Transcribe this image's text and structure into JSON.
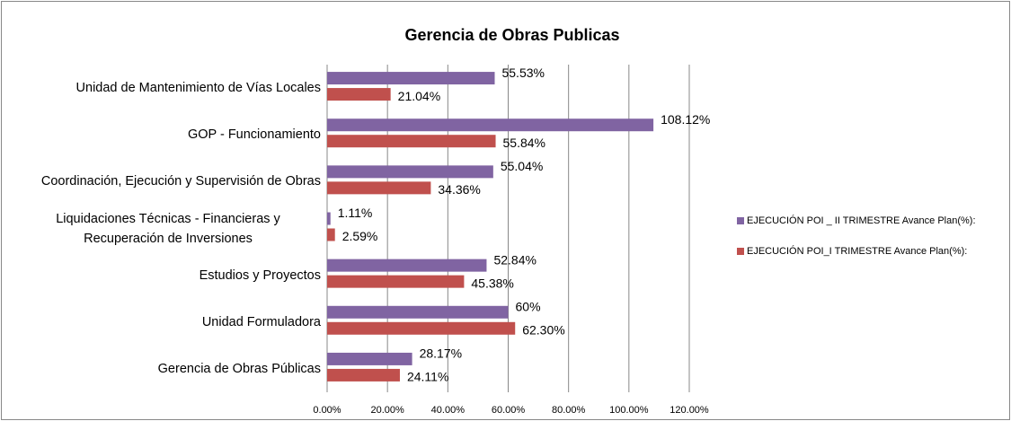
{
  "chart_data": {
    "type": "hbar",
    "title": "Gerencia de Obras Publicas",
    "categories": [
      "Unidad de Mantenimiento de Vías Locales",
      "GOP - Funcionamiento",
      "Coordinación, Ejecución y Supervisión de Obras",
      "Liquidaciones Técnicas - Financieras y Recuperación de Inversiones",
      "Estudios y Proyectos",
      "Unidad Formuladora",
      "Gerencia de Obras Públicas"
    ],
    "series": [
      {
        "name": "EJECUCIÓN POI _ II TRIMESTRE Avance Plan(%):",
        "color": "#8064a2",
        "values": [
          55.53,
          108.12,
          55.04,
          1.11,
          52.84,
          60,
          28.17
        ],
        "value_labels": [
          "55.53%",
          "108.12%",
          "55.04%",
          "1.11%",
          "52.84%",
          "60%",
          "28.17%"
        ]
      },
      {
        "name": "EJECUCIÓN POI_I TRIMESTRE Avance Plan(%):",
        "color": "#c0504d",
        "values": [
          21.04,
          55.84,
          34.36,
          2.59,
          45.38,
          62.3,
          24.11
        ],
        "value_labels": [
          "21.04%",
          "55.84%",
          "34.36%",
          "2.59%",
          "45.38%",
          "62.30%",
          "24.11%"
        ]
      }
    ],
    "xlim": [
      0,
      120
    ],
    "xticks": [
      {
        "value": 0,
        "label": "0.00%"
      },
      {
        "value": 20,
        "label": "20.00%"
      },
      {
        "value": 40,
        "label": "40.00%"
      },
      {
        "value": 60,
        "label": "60.00%"
      },
      {
        "value": 80,
        "label": "80.00%"
      },
      {
        "value": 100,
        "label": "100.00%"
      },
      {
        "value": 120,
        "label": "120.00%"
      }
    ],
    "grid": true,
    "legend": "right"
  }
}
